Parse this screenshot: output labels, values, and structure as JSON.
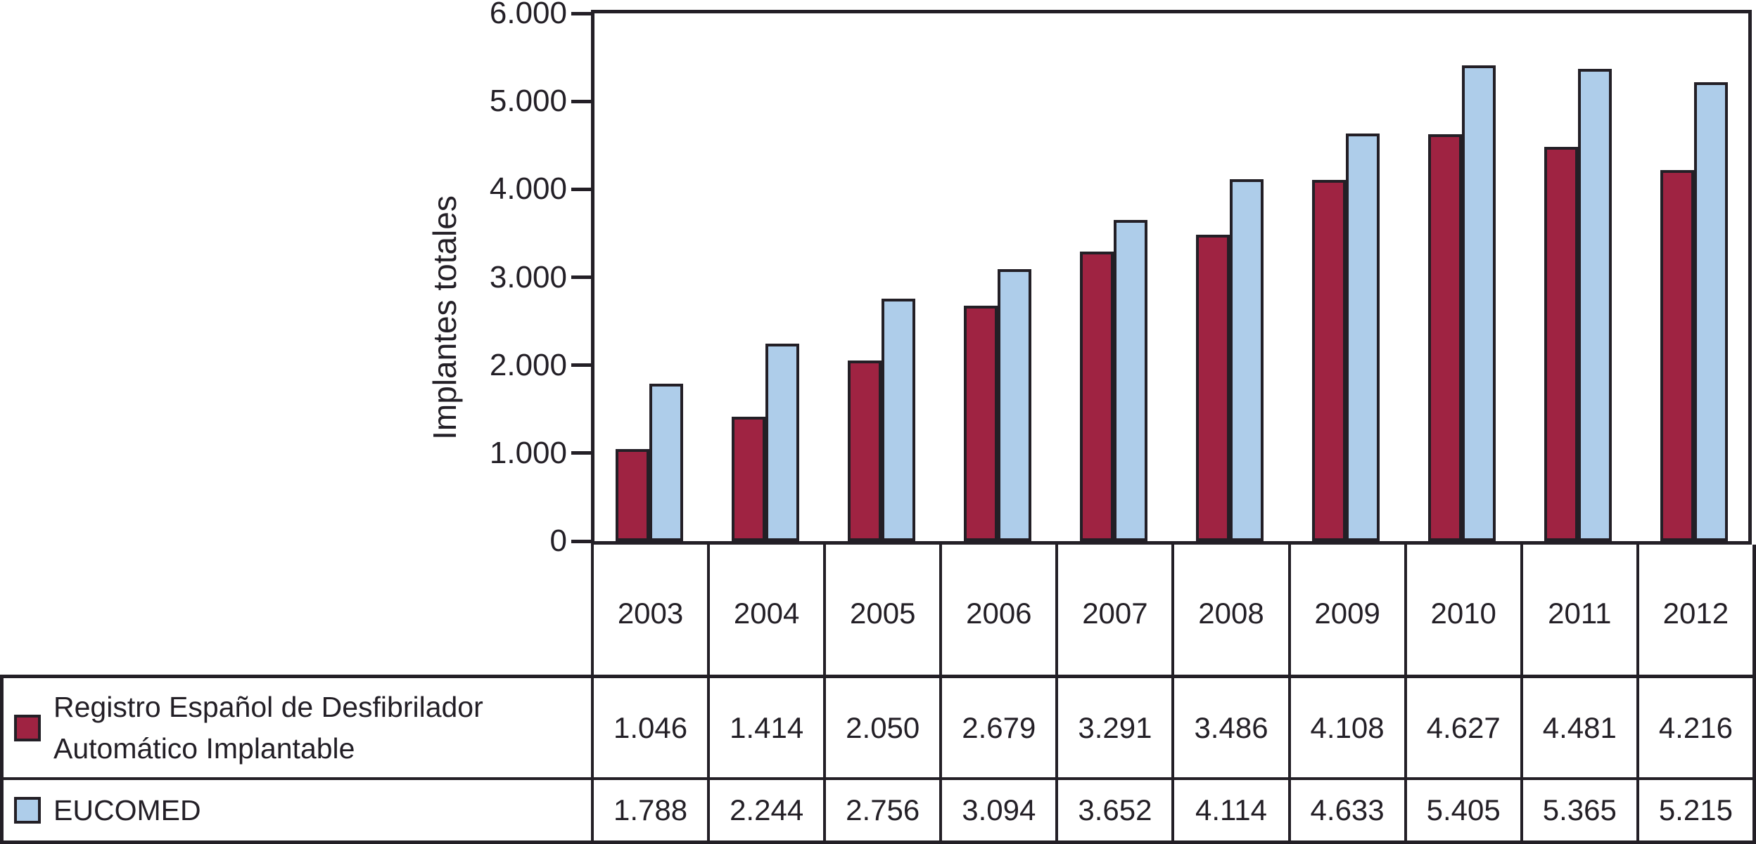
{
  "figure": {
    "background": "#FFFFFF",
    "ink_color": "#231F26"
  },
  "chart_data": {
    "type": "bar",
    "title": "",
    "xlabel": "",
    "ylabel": "Implantes totales",
    "ylim": [
      0,
      6000
    ],
    "grid": false,
    "legend_position": "table-left-bottom",
    "categories": [
      "2003",
      "2004",
      "2005",
      "2006",
      "2007",
      "2008",
      "2009",
      "2010",
      "2011",
      "2012"
    ],
    "yticks": [
      {
        "value": 6000,
        "label": "6.000"
      },
      {
        "value": 5000,
        "label": "5.000"
      },
      {
        "value": 4000,
        "label": "4.000"
      },
      {
        "value": 3000,
        "label": "3.000"
      },
      {
        "value": 2000,
        "label": "2.000"
      },
      {
        "value": 1000,
        "label": "1.000"
      },
      {
        "value": 0,
        "label": "0"
      }
    ],
    "series": [
      {
        "name": "Registro Español de Desfibrilador Automático Implantable",
        "legend_lines": [
          "Registro Español de Desfibrilador",
          "Automático Implantable"
        ],
        "color": "#9F2342",
        "values": [
          1046,
          1414,
          2050,
          2679,
          3291,
          3486,
          4108,
          4627,
          4481,
          4216
        ],
        "value_labels": [
          "1.046",
          "1.414",
          "2.050",
          "2.679",
          "3.291",
          "3.486",
          "4.108",
          "4.627",
          "4.481",
          "4.216"
        ]
      },
      {
        "name": "EUCOMED",
        "legend_lines": [
          "EUCOMED"
        ],
        "color": "#AECDEA",
        "values": [
          1788,
          2244,
          2756,
          3094,
          3652,
          4114,
          4633,
          5405,
          5365,
          5215
        ],
        "value_labels": [
          "1.788",
          "2.244",
          "2.756",
          "3.094",
          "3.652",
          "4.114",
          "4.633",
          "5.405",
          "5.365",
          "5.215"
        ]
      }
    ]
  }
}
